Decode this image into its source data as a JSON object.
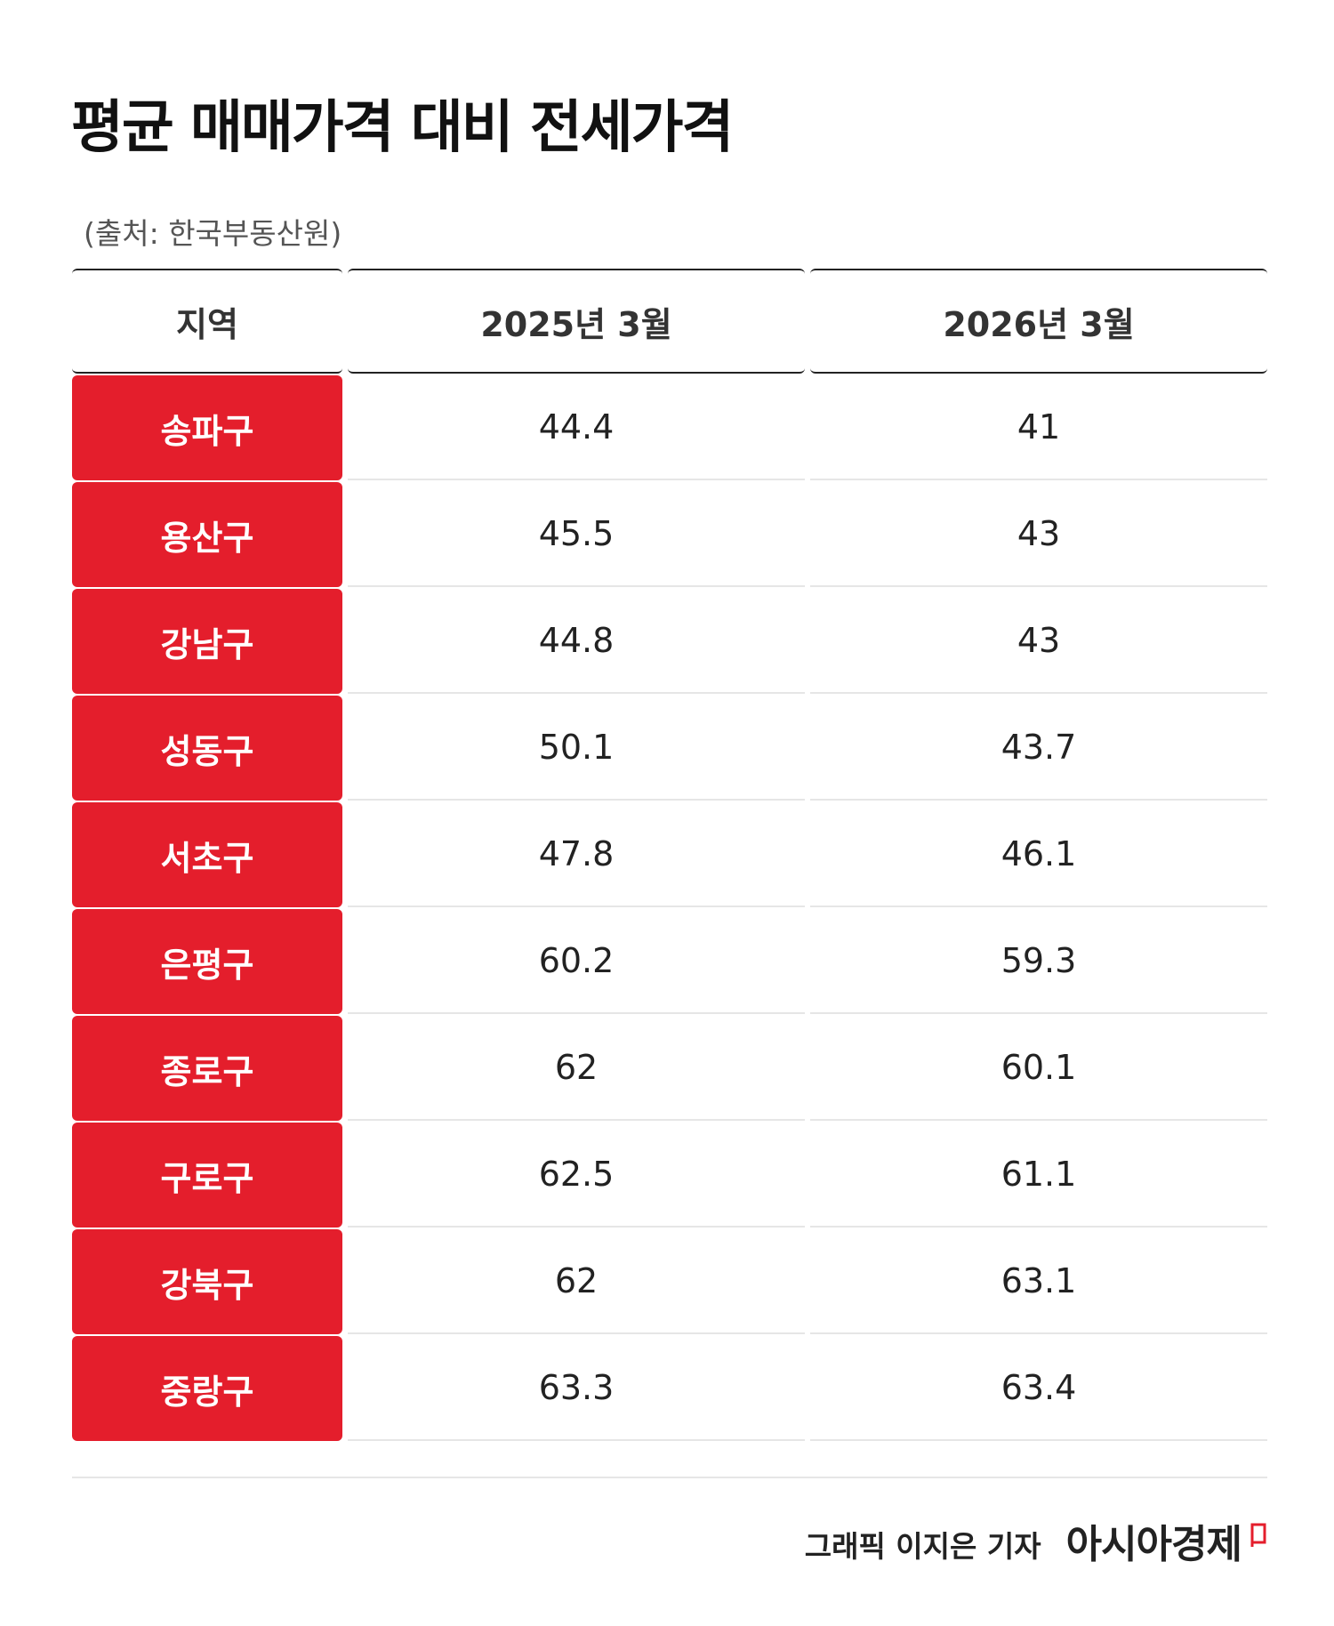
{
  "title": "평균 매매가격 대비 전세가격",
  "source": "(출처: 한국부동산원)",
  "chart_data": {
    "type": "table",
    "columns": [
      "지역",
      "2025년 3월",
      "2026년 3월"
    ],
    "rows": [
      {
        "region": "송파구",
        "v2025": "44.4",
        "v2026": "41"
      },
      {
        "region": "용산구",
        "v2025": "45.5",
        "v2026": "43"
      },
      {
        "region": "강남구",
        "v2025": "44.8",
        "v2026": "43"
      },
      {
        "region": "성동구",
        "v2025": "50.1",
        "v2026": "43.7"
      },
      {
        "region": "서초구",
        "v2025": "47.8",
        "v2026": "46.1"
      },
      {
        "region": "은평구",
        "v2025": "60.2",
        "v2026": "59.3"
      },
      {
        "region": "종로구",
        "v2025": "62",
        "v2026": "60.1"
      },
      {
        "region": "구로구",
        "v2025": "62.5",
        "v2026": "61.1"
      },
      {
        "region": "강북구",
        "v2025": "62",
        "v2026": "63.1"
      },
      {
        "region": "중랑구",
        "v2025": "63.3",
        "v2026": "63.4"
      }
    ]
  },
  "footer": {
    "credit": "그래픽  이지은 기자",
    "logo": "아시아경제"
  },
  "colors": {
    "accent": "#e41e2c",
    "text": "#222222",
    "rule": "#e6e6e6"
  }
}
